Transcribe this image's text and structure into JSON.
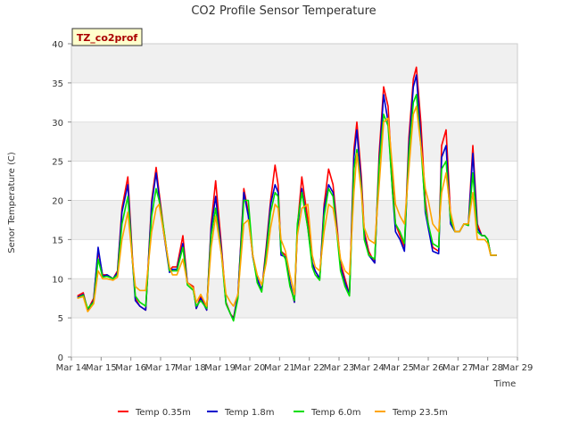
{
  "chart_data": {
    "type": "line",
    "title": "CO2 Profile Sensor Temperature",
    "xlabel": "Time",
    "ylabel": "Senor Temperature (C)",
    "site_label": "TZ_co2prof",
    "xlim": [
      14,
      29
    ],
    "ylim": [
      0,
      40
    ],
    "x_ticks": [
      14,
      15,
      16,
      17,
      18,
      19,
      20,
      21,
      22,
      23,
      24,
      25,
      26,
      27,
      28,
      29
    ],
    "x_tick_labels": [
      "Mar 14",
      "Mar 15",
      "Mar 16",
      "Mar 17",
      "Mar 18",
      "Mar 19",
      "Mar 20",
      "Mar 21",
      "Mar 22",
      "Mar 23",
      "Mar 24",
      "Mar 25",
      "Mar 26",
      "Mar 27",
      "Mar 28",
      "Mar 29"
    ],
    "y_ticks": [
      0,
      5,
      10,
      15,
      20,
      25,
      30,
      35,
      40
    ],
    "y_tick_labels": [
      "0",
      "5",
      "10",
      "15",
      "20",
      "25",
      "30",
      "35",
      "40"
    ],
    "grid": true,
    "background_bands": true,
    "legend_position": "bottom-center",
    "series": [
      {
        "name": "Temp 0.35m",
        "color": "#ff0000",
        "x": [
          14.2,
          14.4,
          14.55,
          14.75,
          14.9,
          15.05,
          15.2,
          15.4,
          15.55,
          15.7,
          15.9,
          16.05,
          16.15,
          16.3,
          16.5,
          16.7,
          16.85,
          16.95,
          17.1,
          17.3,
          17.4,
          17.55,
          17.75,
          17.9,
          18.1,
          18.2,
          18.35,
          18.55,
          18.7,
          18.85,
          19.05,
          19.2,
          19.35,
          19.45,
          19.6,
          19.8,
          19.95,
          20.1,
          20.25,
          20.4,
          20.55,
          20.7,
          20.85,
          20.95,
          21.05,
          21.2,
          21.35,
          21.5,
          21.6,
          21.75,
          21.95,
          22.1,
          22.2,
          22.35,
          22.5,
          22.65,
          22.8,
          22.95,
          23.05,
          23.2,
          23.35,
          23.5,
          23.6,
          23.75,
          23.85,
          24.0,
          24.2,
          24.35,
          24.5,
          24.65,
          24.8,
          24.9,
          25.05,
          25.2,
          25.35,
          25.5,
          25.6,
          25.75,
          25.9,
          26.0,
          26.15,
          26.35,
          26.45,
          26.6,
          26.75,
          26.9,
          27.05,
          27.2,
          27.35,
          27.5,
          27.65,
          27.8,
          27.9,
          28.0,
          28.1,
          28.2,
          28.3
        ],
        "y": [
          7.8,
          8.2,
          6.0,
          7.5,
          13.5,
          10.5,
          10.5,
          10.0,
          11.0,
          19.0,
          23.0,
          13.0,
          7.5,
          6.5,
          6.0,
          20.0,
          24.2,
          21.0,
          16.5,
          11.0,
          11.5,
          11.5,
          15.5,
          9.5,
          9.0,
          6.2,
          7.8,
          6.0,
          17.0,
          22.5,
          14.0,
          7.0,
          5.5,
          5.0,
          8.0,
          21.5,
          18.5,
          13.0,
          10.0,
          8.5,
          14.0,
          20.0,
          24.5,
          22.0,
          13.5,
          13.0,
          9.5,
          7.0,
          16.5,
          23.0,
          17.5,
          12.0,
          11.0,
          10.0,
          19.5,
          24.0,
          22.0,
          16.0,
          12.0,
          10.0,
          8.0,
          26.5,
          30.0,
          23.0,
          16.0,
          13.5,
          12.0,
          26.0,
          34.5,
          32.0,
          22.0,
          17.0,
          15.5,
          14.0,
          28.0,
          35.5,
          37.0,
          30.0,
          20.0,
          17.0,
          14.0,
          13.5,
          27.0,
          29.0,
          18.0,
          16.0,
          16.0,
          17.0,
          17.0,
          27.0,
          17.0,
          15.5,
          15.5,
          15.0,
          13.0,
          13.0,
          13.0
        ]
      },
      {
        "name": "Temp 1.8m",
        "color": "#0000cc",
        "x": [
          14.2,
          14.4,
          14.55,
          14.75,
          14.9,
          15.05,
          15.2,
          15.4,
          15.55,
          15.7,
          15.9,
          16.05,
          16.15,
          16.3,
          16.5,
          16.7,
          16.85,
          16.95,
          17.1,
          17.3,
          17.4,
          17.55,
          17.75,
          17.9,
          18.1,
          18.2,
          18.35,
          18.55,
          18.7,
          18.85,
          19.05,
          19.2,
          19.35,
          19.45,
          19.6,
          19.8,
          19.95,
          20.1,
          20.25,
          20.4,
          20.55,
          20.7,
          20.85,
          20.95,
          21.05,
          21.2,
          21.35,
          21.5,
          21.6,
          21.75,
          21.95,
          22.1,
          22.2,
          22.35,
          22.5,
          22.65,
          22.8,
          22.95,
          23.05,
          23.2,
          23.35,
          23.5,
          23.6,
          23.75,
          23.85,
          24.0,
          24.2,
          24.35,
          24.5,
          24.65,
          24.8,
          24.9,
          25.05,
          25.2,
          25.35,
          25.5,
          25.6,
          25.75,
          25.9,
          26.0,
          26.15,
          26.35,
          26.45,
          26.6,
          26.75,
          26.9,
          27.05,
          27.2,
          27.35,
          27.5,
          27.65,
          27.8,
          27.9,
          28.0,
          28.1,
          28.2,
          28.3
        ],
        "y": [
          7.6,
          8.0,
          6.0,
          7.2,
          14.0,
          10.3,
          10.5,
          10.0,
          10.8,
          18.5,
          22.0,
          12.5,
          7.2,
          6.5,
          6.0,
          19.5,
          23.5,
          20.5,
          16.0,
          10.8,
          11.2,
          11.2,
          14.5,
          9.5,
          8.8,
          6.2,
          7.5,
          6.0,
          16.5,
          20.5,
          13.5,
          6.8,
          5.5,
          4.8,
          8.0,
          21.0,
          18.0,
          12.8,
          10.0,
          8.5,
          13.5,
          19.5,
          22.0,
          21.0,
          13.0,
          12.8,
          9.5,
          7.0,
          16.0,
          21.5,
          16.5,
          12.0,
          11.0,
          10.0,
          19.0,
          22.0,
          21.0,
          15.5,
          11.5,
          9.5,
          8.0,
          25.5,
          29.0,
          22.0,
          15.5,
          13.0,
          12.0,
          25.0,
          33.5,
          30.0,
          21.0,
          16.0,
          15.0,
          13.5,
          27.0,
          34.5,
          36.0,
          28.0,
          18.5,
          16.5,
          13.5,
          13.2,
          25.5,
          27.0,
          17.0,
          16.0,
          16.0,
          17.0,
          16.8,
          26.0,
          16.5,
          15.5,
          15.5,
          15.0,
          13.0,
          13.0,
          13.0
        ]
      },
      {
        "name": "Temp 6.0m",
        "color": "#00dd00",
        "x": [
          14.2,
          14.4,
          14.55,
          14.75,
          14.9,
          15.05,
          15.2,
          15.4,
          15.55,
          15.7,
          15.9,
          16.05,
          16.15,
          16.3,
          16.5,
          16.7,
          16.85,
          16.95,
          17.1,
          17.3,
          17.4,
          17.55,
          17.75,
          17.9,
          18.1,
          18.2,
          18.35,
          18.55,
          18.7,
          18.85,
          19.05,
          19.2,
          19.35,
          19.45,
          19.6,
          19.8,
          19.95,
          20.1,
          20.25,
          20.4,
          20.55,
          20.7,
          20.85,
          20.95,
          21.05,
          21.2,
          21.35,
          21.5,
          21.6,
          21.75,
          21.95,
          22.1,
          22.2,
          22.35,
          22.5,
          22.65,
          22.8,
          22.95,
          23.05,
          23.2,
          23.35,
          23.5,
          23.6,
          23.75,
          23.85,
          24.0,
          24.2,
          24.35,
          24.5,
          24.65,
          24.8,
          24.9,
          25.05,
          25.2,
          25.35,
          25.5,
          25.6,
          25.75,
          25.9,
          26.0,
          26.15,
          26.35,
          26.45,
          26.6,
          26.75,
          26.9,
          27.05,
          27.2,
          27.35,
          27.5,
          27.65,
          27.8,
          27.9,
          28.0,
          28.1,
          28.2,
          28.3
        ],
        "y": [
          7.5,
          7.9,
          6.2,
          7.0,
          12.5,
          10.2,
          10.3,
          10.0,
          10.5,
          17.0,
          20.5,
          12.5,
          7.8,
          7.0,
          6.5,
          18.0,
          21.5,
          20.0,
          16.5,
          11.0,
          11.0,
          11.0,
          14.0,
          9.2,
          8.5,
          6.5,
          7.2,
          6.2,
          15.5,
          19.0,
          13.0,
          6.8,
          5.5,
          4.6,
          7.5,
          20.0,
          20.0,
          13.0,
          9.5,
          8.3,
          13.0,
          18.5,
          21.0,
          20.5,
          13.5,
          12.5,
          9.0,
          7.2,
          17.0,
          21.0,
          16.5,
          11.5,
          10.5,
          9.8,
          18.0,
          21.5,
          20.5,
          15.0,
          11.0,
          9.0,
          7.8,
          24.0,
          26.5,
          21.5,
          15.0,
          13.0,
          12.5,
          24.5,
          31.0,
          29.5,
          21.0,
          17.0,
          16.0,
          14.5,
          26.0,
          32.5,
          33.5,
          27.0,
          19.0,
          17.0,
          14.5,
          14.0,
          24.0,
          25.0,
          17.5,
          16.0,
          16.0,
          17.0,
          16.8,
          23.5,
          16.0,
          15.5,
          15.5,
          15.0,
          13.0,
          13.0,
          13.0
        ]
      },
      {
        "name": "Temp 23.5m",
        "color": "#ffa500",
        "x": [
          14.2,
          14.4,
          14.55,
          14.75,
          14.9,
          15.05,
          15.2,
          15.4,
          15.55,
          15.7,
          15.9,
          16.05,
          16.15,
          16.3,
          16.5,
          16.7,
          16.85,
          16.95,
          17.1,
          17.3,
          17.4,
          17.55,
          17.75,
          17.9,
          18.1,
          18.2,
          18.35,
          18.55,
          18.7,
          18.85,
          19.05,
          19.2,
          19.35,
          19.45,
          19.6,
          19.8,
          19.95,
          20.1,
          20.25,
          20.4,
          20.55,
          20.7,
          20.85,
          20.95,
          21.05,
          21.2,
          21.35,
          21.5,
          21.6,
          21.75,
          21.95,
          22.1,
          22.2,
          22.35,
          22.5,
          22.65,
          22.8,
          22.95,
          23.05,
          23.2,
          23.35,
          23.5,
          23.6,
          23.75,
          23.85,
          24.0,
          24.2,
          24.35,
          24.5,
          24.65,
          24.8,
          24.9,
          25.05,
          25.2,
          25.35,
          25.5,
          25.6,
          25.75,
          25.9,
          26.0,
          26.15,
          26.35,
          26.45,
          26.6,
          26.75,
          26.9,
          27.05,
          27.2,
          27.35,
          27.5,
          27.65,
          27.8,
          27.9,
          28.0,
          28.1,
          28.2,
          28.3
        ],
        "y": [
          7.5,
          7.7,
          5.8,
          6.8,
          11.0,
          10.0,
          10.0,
          9.8,
          10.2,
          15.0,
          18.5,
          12.5,
          9.0,
          8.5,
          8.5,
          16.0,
          19.0,
          19.5,
          16.0,
          11.5,
          10.5,
          10.5,
          12.5,
          9.5,
          8.8,
          7.0,
          8.0,
          6.5,
          14.0,
          18.0,
          13.0,
          8.0,
          7.0,
          6.5,
          8.0,
          17.0,
          17.5,
          13.0,
          10.5,
          9.2,
          12.0,
          16.5,
          19.5,
          19.0,
          15.0,
          13.5,
          10.5,
          8.0,
          15.5,
          19.0,
          19.5,
          13.0,
          11.5,
          11.0,
          16.0,
          19.5,
          19.0,
          15.5,
          12.5,
          11.0,
          10.5,
          21.0,
          26.0,
          21.0,
          16.5,
          15.0,
          14.5,
          22.0,
          30.0,
          30.5,
          24.0,
          19.5,
          18.0,
          17.0,
          24.0,
          31.0,
          32.0,
          27.0,
          21.5,
          20.0,
          17.0,
          16.0,
          21.0,
          23.5,
          18.5,
          16.0,
          16.0,
          17.0,
          17.0,
          21.0,
          15.0,
          15.0,
          15.0,
          14.5,
          13.0,
          13.0,
          13.0
        ]
      }
    ]
  }
}
